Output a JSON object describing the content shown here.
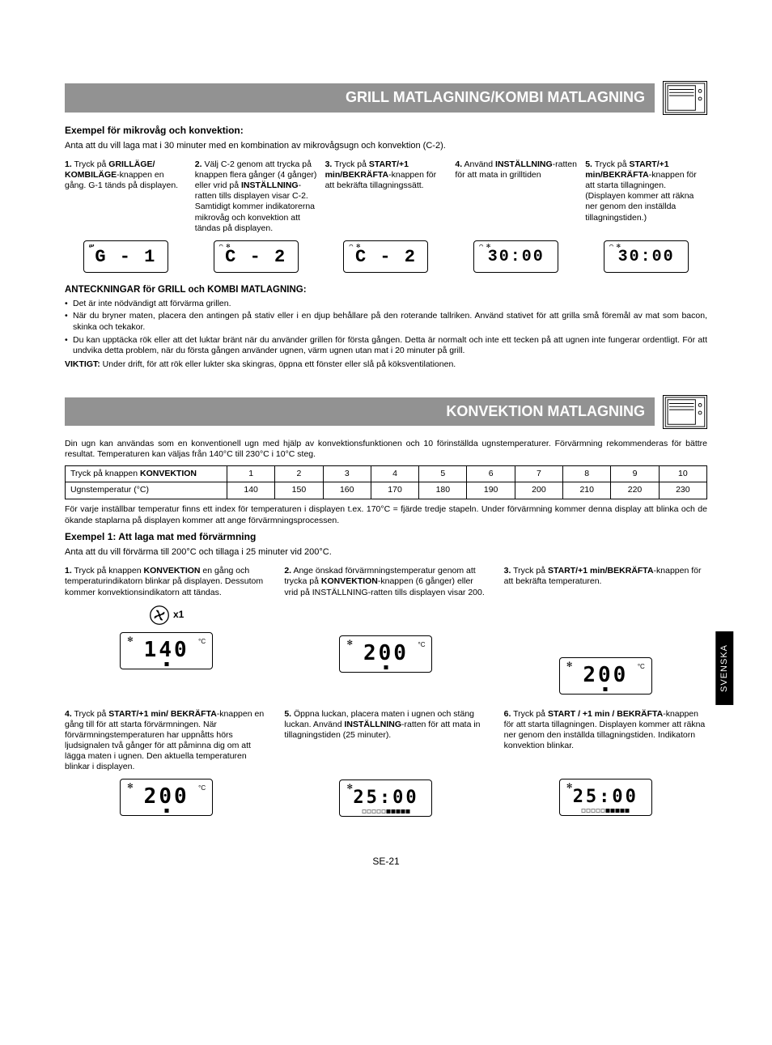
{
  "side_tab": "SVENSKA",
  "page_number": "SE-21",
  "section1": {
    "title": "GRILL MATLAGNING/KOMBI MATLAGNING",
    "subtitle": "Exempel för mikrovåg och konvektion:",
    "intro": "Anta att du vill laga mat i 30 minuter med en kombination av mikrovågsugn och konvektion (C-2).",
    "steps": [
      {
        "num": "1.",
        "html": "Tryck på <b>GRILLÄGE/ KOMBILÄGE</b>-knappen en gång. G-1 tänds på displayen."
      },
      {
        "num": "2.",
        "html": "Välj C-2 genom att trycka på knappen flera gånger (4 gånger) eller vrid på <b>INSTÄLLNING</b>-ratten tills displayen visar C-2. Samtidigt kommer indikatorerna mikrovåg och konvektion att tändas på displayen."
      },
      {
        "num": "3.",
        "html": "Tryck på <b>START/+1 min/BEKRÄFTA</b>-knappen för att bekräfta tillagningssätt."
      },
      {
        "num": "4.",
        "html": "Använd <b>INSTÄLLNING</b>-ratten för att mata in grilltiden"
      },
      {
        "num": "5.",
        "html": "Tryck på <b>START/+1 min/BEKRÄFTA</b>-knappen för att starta tillagningen. (Displayen kommer att räkna ner genom den inställda tillagningstiden.)"
      }
    ],
    "displays": [
      "G - 1",
      "C - 2",
      "C - 2",
      "30:00",
      "30:00"
    ],
    "notes_title": "ANTECKNINGAR för GRILL och KOMBI MATLAGNING:",
    "notes": [
      "Det är inte nödvändigt att förvärma grillen.",
      "När du bryner maten, placera den antingen på stativ eller i en djup behållare på den roterande tallriken. Använd stativet för att grilla små föremål av mat som bacon, skinka och tekakor.",
      "Du kan upptäcka rök eller att det luktar bränt när du använder grillen för första gången. Detta är normalt och inte ett tecken på att ugnen inte fungerar ordentligt. För att undvika detta problem, när du första gången använder ugnen, värm ugnen utan mat i 20 minuter på grill."
    ],
    "important_label": "VIKTIGT:",
    "important_text": " Under drift, för att rök eller lukter ska skingras, öppna ett fönster eller slå på köksventilationen."
  },
  "section2": {
    "title": "KONVEKTION MATLAGNING",
    "desc": "Din ugn kan användas som en konventionell ugn med hjälp av konvektionsfunktionen och 10 förinställda ugnstemperaturer. Förvärmning rekommenderas för bättre resultat. Temperaturen kan väljas från 140°C till 230°C i 10°C steg.",
    "table": {
      "row1_label_prefix": "Tryck på knappen ",
      "row1_label_bold": "KONVEKTION",
      "row2_label": "Ugnstemperatur (°C)",
      "presses": [
        "1",
        "2",
        "3",
        "4",
        "5",
        "6",
        "7",
        "8",
        "9",
        "10"
      ],
      "temps": [
        "140",
        "150",
        "160",
        "170",
        "180",
        "190",
        "200",
        "210",
        "220",
        "230"
      ]
    },
    "post_table": "För varje inställbar temperatur finns ett index för temperaturen i displayen t.ex. 170°C = fjärde tredje stapeln. Under förvärmning kommer denna display att blinka och de ökande staplarna på displayen kommer att ange förvärmningsprocessen.",
    "example_title": "Exempel 1: Att laga mat med förvärmning",
    "example_intro": "Anta att du vill förvärma till 200°C och tillaga i 25 minuter vid 200°C.",
    "convection_x1": "x1",
    "steps": [
      {
        "num": "1.",
        "html": "Tryck på knappen <b>KONVEKTION</b> en gång och temperaturindikatorn blinkar på displayen. Dessutom kommer konvektionsindikatorn att tändas."
      },
      {
        "num": "2.",
        "html": "Ange önskad förvärmningstemperatur genom att trycka på <b>KONVEKTION</b>-knappen (6 gånger) eller vrid på INSTÄLLNING-ratten tills displayen visar 200."
      },
      {
        "num": "3.",
        "html": "Tryck på <b>START/+1 min/BEKRÄFTA</b>-knappen för att bekräfta temperaturen."
      },
      {
        "num": "4.",
        "html": "Tryck på <b>START/+1 min/ BEKRÄFTA</b>-knappen en gång till för att starta förvärmningen. När förvärmningstemperaturen har uppnåtts hörs ljudsignalen två gånger för att påminna dig om att lägga maten i ugnen. Den aktuella temperaturen blinkar i displayen."
      },
      {
        "num": "5.",
        "html": "Öppna luckan, placera maten i ugnen och stäng luckan. Använd <b>INSTÄLLNING</b>-ratten för att mata in tillagningstiden (25 minuter)."
      },
      {
        "num": "6.",
        "html": "Tryck på <b>START / +1 min / BEKRÄFTA</b>-knappen för att starta tillagningen. Displayen kommer att räkna ner genom den inställda tillagningstiden. Indikatorn konvektion blinkar."
      }
    ],
    "displays": {
      "d1": "140",
      "d2": "200",
      "d3": "200",
      "d4": "200",
      "d5": "25:00",
      "d6": "25:00"
    }
  },
  "colors": {
    "header_bg": "#929292",
    "header_text": "#ffffff"
  }
}
